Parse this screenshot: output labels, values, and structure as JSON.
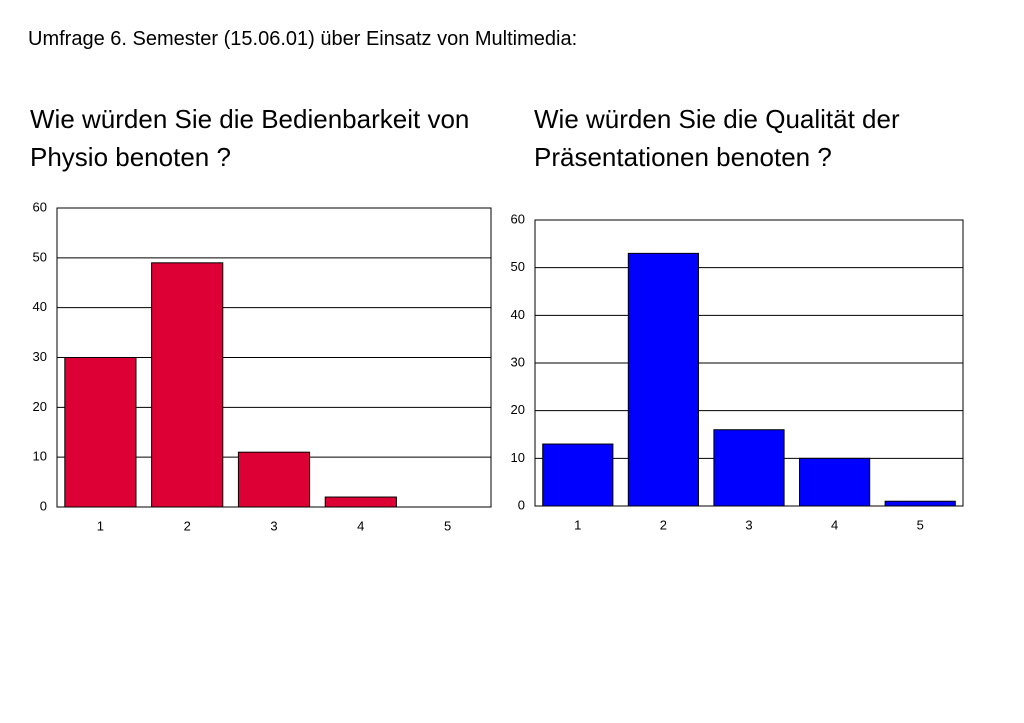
{
  "title": "Umfrage 6. Semester (15.06.01) über Einsatz von Multimedia:",
  "chart_data": [
    {
      "type": "bar",
      "title": "Wie würden Sie die Bedienbarkeit von Physio benoten ?",
      "categories": [
        "1",
        "2",
        "3",
        "4",
        "5"
      ],
      "values": [
        30,
        49,
        11,
        2,
        0
      ],
      "color": "#dc0035",
      "ylim": [
        0,
        60
      ],
      "yticks": [
        0,
        10,
        20,
        30,
        40,
        50,
        60
      ],
      "grid": true
    },
    {
      "type": "bar",
      "title": "Wie würden Sie die Qualität der Präsentationen benoten ?",
      "categories": [
        "1",
        "2",
        "3",
        "4",
        "5"
      ],
      "values": [
        13,
        53,
        16,
        10,
        1
      ],
      "color": "#0000ff",
      "ylim": [
        0,
        60
      ],
      "yticks": [
        0,
        10,
        20,
        30,
        40,
        50,
        60
      ],
      "grid": true
    }
  ]
}
